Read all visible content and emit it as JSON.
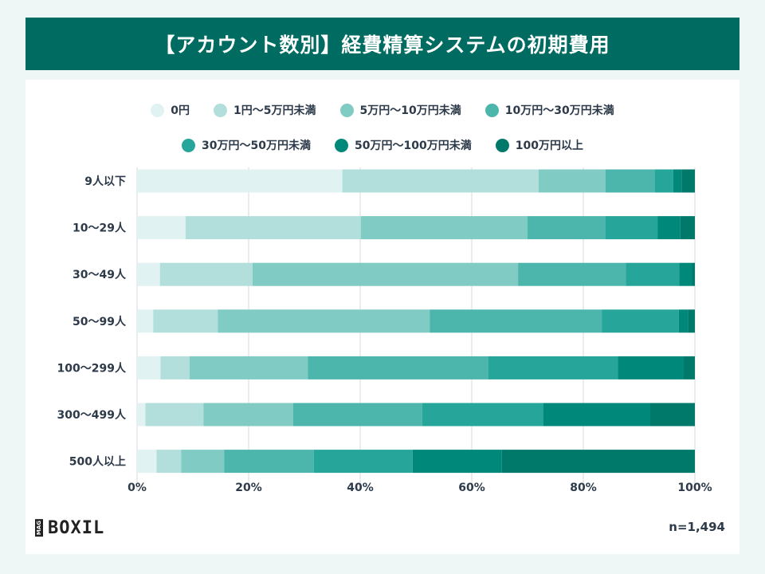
{
  "title": "【アカウント数別】経費精算システムの初期費用",
  "note": "n=1,494",
  "logo": {
    "text": "BOXIL",
    "badge": "MAG"
  },
  "chart_data": {
    "type": "bar",
    "orientation": "horizontal",
    "stacked": "percent",
    "categories": [
      "9人以下",
      "10〜29人",
      "30〜49人",
      "50〜99人",
      "100〜299人",
      "300〜499人",
      "500人以上"
    ],
    "series": [
      {
        "name": "0円",
        "color": "#e0f2f1",
        "values": [
          36.8,
          8.7,
          4.1,
          2.9,
          4.2,
          1.5,
          3.5
        ]
      },
      {
        "name": "1円〜5万円未満",
        "color": "#b2dfdb",
        "values": [
          35.2,
          31.4,
          16.6,
          11.6,
          5.2,
          10.4,
          4.4
        ]
      },
      {
        "name": "5万円〜10万円未満",
        "color": "#80cbc4",
        "values": [
          12.0,
          29.9,
          47.6,
          38.0,
          21.2,
          16.1,
          7.7
        ]
      },
      {
        "name": "10万円〜30万円未満",
        "color": "#4db6ac",
        "values": [
          8.8,
          14.0,
          19.3,
          30.8,
          32.4,
          23.1,
          16.1
        ]
      },
      {
        "name": "30万円〜50万円未満",
        "color": "#26a69a",
        "values": [
          3.3,
          9.3,
          9.6,
          13.8,
          23.2,
          21.7,
          17.7
        ]
      },
      {
        "name": "50万円〜100万円未満",
        "color": "#00897b",
        "values": [
          1.5,
          4.1,
          2.3,
          1.7,
          11.8,
          19.2,
          16.0
        ]
      },
      {
        "name": "100万円以上",
        "color": "#00796b",
        "values": [
          2.4,
          2.6,
          0.5,
          1.2,
          2.0,
          8.0,
          34.6
        ]
      }
    ],
    "xlim": [
      0,
      100
    ],
    "xticks": [
      "0%",
      "20%",
      "40%",
      "60%",
      "80%",
      "100%"
    ],
    "grid": true,
    "legend": "top"
  }
}
